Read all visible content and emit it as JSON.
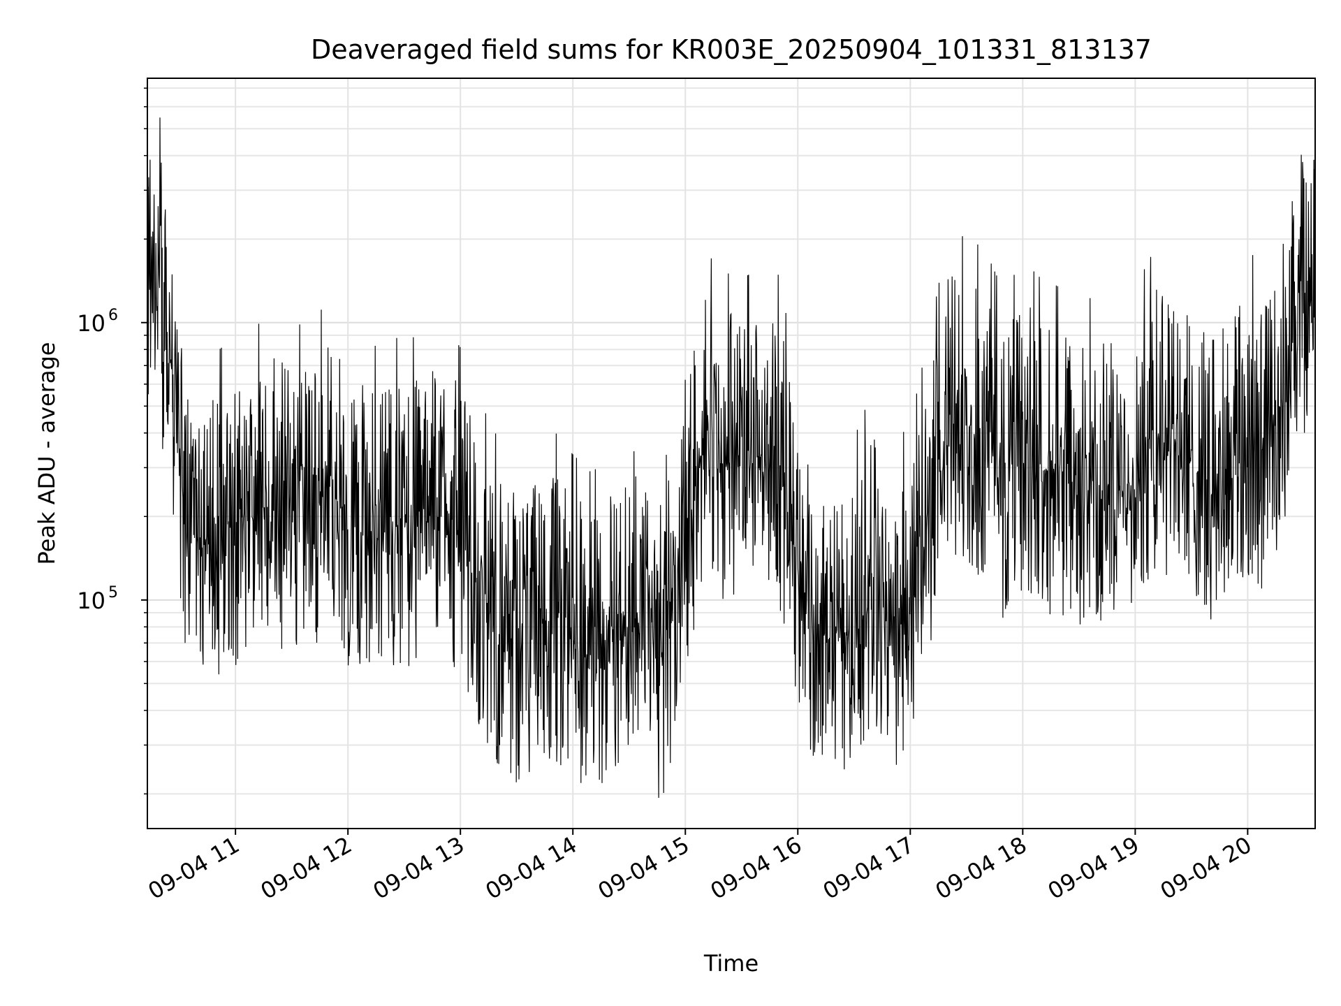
{
  "chart_data": {
    "type": "line",
    "title": "Deaveraged field sums for KR003E_20250904_101331_813137",
    "xlabel": "Time",
    "ylabel": "Peak ADU - average",
    "yscale": "log",
    "ylim": [
      15000,
      7600000
    ],
    "xlim": [
      "2025-09-04 10:13",
      "2025-09-04 20:36"
    ],
    "x_tick_labels": [
      "09-04 11",
      "09-04 12",
      "09-04 13",
      "09-04 14",
      "09-04 15",
      "09-04 16",
      "09-04 17",
      "09-04 18",
      "09-04 19",
      "09-04 20"
    ],
    "y_tick_labels": [
      {
        "value": 100000,
        "base": "10",
        "exp": "5"
      },
      {
        "value": 1000000,
        "base": "10",
        "exp": "6"
      }
    ],
    "grid": true,
    "line_color": "#000000",
    "series": [
      {
        "x": [
          "2025-09-04 10:13",
          "2025-09-04 10:18",
          "2025-09-04 10:23",
          "2025-09-04 10:28",
          "2025-09-04 10:33",
          "2025-09-04 10:40",
          "2025-09-04 10:48",
          "2025-09-04 10:55",
          "2025-09-04 11:00",
          "2025-09-04 11:10",
          "2025-09-04 11:20",
          "2025-09-04 11:30",
          "2025-09-04 11:40",
          "2025-09-04 11:50",
          "2025-09-04 12:00",
          "2025-09-04 12:10",
          "2025-09-04 12:20",
          "2025-09-04 12:30",
          "2025-09-04 12:40",
          "2025-09-04 12:50",
          "2025-09-04 13:00",
          "2025-09-04 13:10",
          "2025-09-04 13:20",
          "2025-09-04 13:30",
          "2025-09-04 13:40",
          "2025-09-04 13:50",
          "2025-09-04 14:00",
          "2025-09-04 14:10",
          "2025-09-04 14:20",
          "2025-09-04 14:30",
          "2025-09-04 14:40",
          "2025-09-04 14:45",
          "2025-09-04 14:50",
          "2025-09-04 15:00",
          "2025-09-04 15:10",
          "2025-09-04 15:20",
          "2025-09-04 15:30",
          "2025-09-04 15:40",
          "2025-09-04 15:50",
          "2025-09-04 16:00",
          "2025-09-04 16:10",
          "2025-09-04 16:20",
          "2025-09-04 16:30",
          "2025-09-04 16:40",
          "2025-09-04 16:50",
          "2025-09-04 17:00",
          "2025-09-04 17:10",
          "2025-09-04 17:20",
          "2025-09-04 17:30",
          "2025-09-04 17:40",
          "2025-09-04 17:50",
          "2025-09-04 18:00",
          "2025-09-04 18:10",
          "2025-09-04 18:20",
          "2025-09-04 18:30",
          "2025-09-04 18:40",
          "2025-09-04 18:50",
          "2025-09-04 19:00",
          "2025-09-04 19:10",
          "2025-09-04 19:20",
          "2025-09-04 19:30",
          "2025-09-04 19:40",
          "2025-09-04 19:50",
          "2025-09-04 20:00",
          "2025-09-04 20:10",
          "2025-09-04 20:20",
          "2025-09-04 20:30",
          "2025-09-04 20:36"
        ],
        "y": [
          1500000,
          1300000,
          900000,
          600000,
          180000,
          170000,
          160000,
          175000,
          190000,
          200000,
          230000,
          210000,
          200000,
          260000,
          190000,
          170000,
          175000,
          190000,
          180000,
          210000,
          170000,
          110000,
          80000,
          70000,
          80000,
          85000,
          70000,
          60000,
          70000,
          95000,
          110000,
          60000,
          70000,
          180000,
          380000,
          320000,
          300000,
          330000,
          310000,
          130000,
          80000,
          70000,
          80000,
          120000,
          75000,
          90000,
          190000,
          420000,
          430000,
          380000,
          270000,
          350000,
          300000,
          280000,
          250000,
          260000,
          240000,
          280000,
          380000,
          400000,
          300000,
          270000,
          310000,
          380000,
          330000,
          600000,
          1300000,
          1200000
        ]
      }
    ],
    "noise": {
      "lower_factor": 0.3,
      "upper_factor": 3.5
    }
  }
}
